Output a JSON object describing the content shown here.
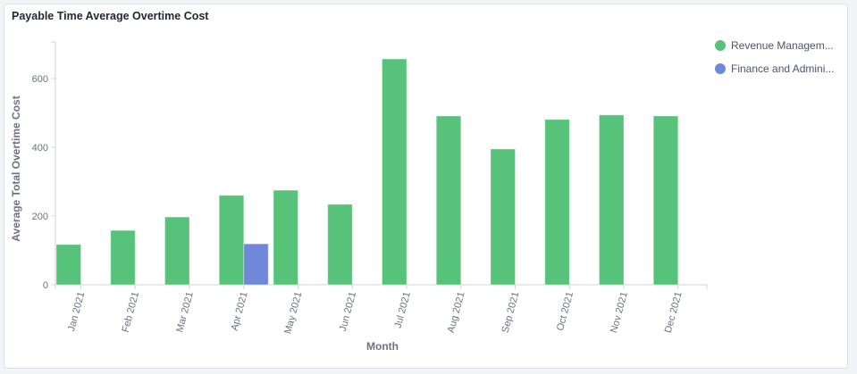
{
  "card": {
    "title": "Payable Time Average Overtime Cost"
  },
  "legend": {
    "items": [
      {
        "label": "Revenue Managem...",
        "color": "#57c27a"
      },
      {
        "label": "Finance and Admini...",
        "color": "#6f88d9"
      }
    ]
  },
  "chart_data": {
    "type": "bar",
    "title": "Payable Time Average Overtime Cost",
    "xlabel": "Month",
    "ylabel": "Average Total Overtime Cost",
    "categories": [
      "Jan 2021",
      "Feb 2021",
      "Mar 2021",
      "Apr 2021",
      "May 2021",
      "Jun 2021",
      "Jul 2021",
      "Aug 2021",
      "Sep 2021",
      "Oct 2021",
      "Nov 2021",
      "Dec 2021"
    ],
    "series": [
      {
        "name": "Revenue Managem...",
        "color": "#57c27a",
        "values": [
          117,
          158,
          197,
          260,
          275,
          234,
          657,
          491,
          395,
          481,
          494,
          491
        ]
      },
      {
        "name": "Finance and Admini...",
        "color": "#6f88d9",
        "values": [
          null,
          null,
          null,
          119,
          null,
          null,
          null,
          null,
          null,
          null,
          null,
          null
        ]
      }
    ],
    "yticks": [
      0,
      200,
      400,
      600
    ],
    "ylim": [
      0,
      700
    ],
    "grid": false,
    "legend_position": "right"
  }
}
